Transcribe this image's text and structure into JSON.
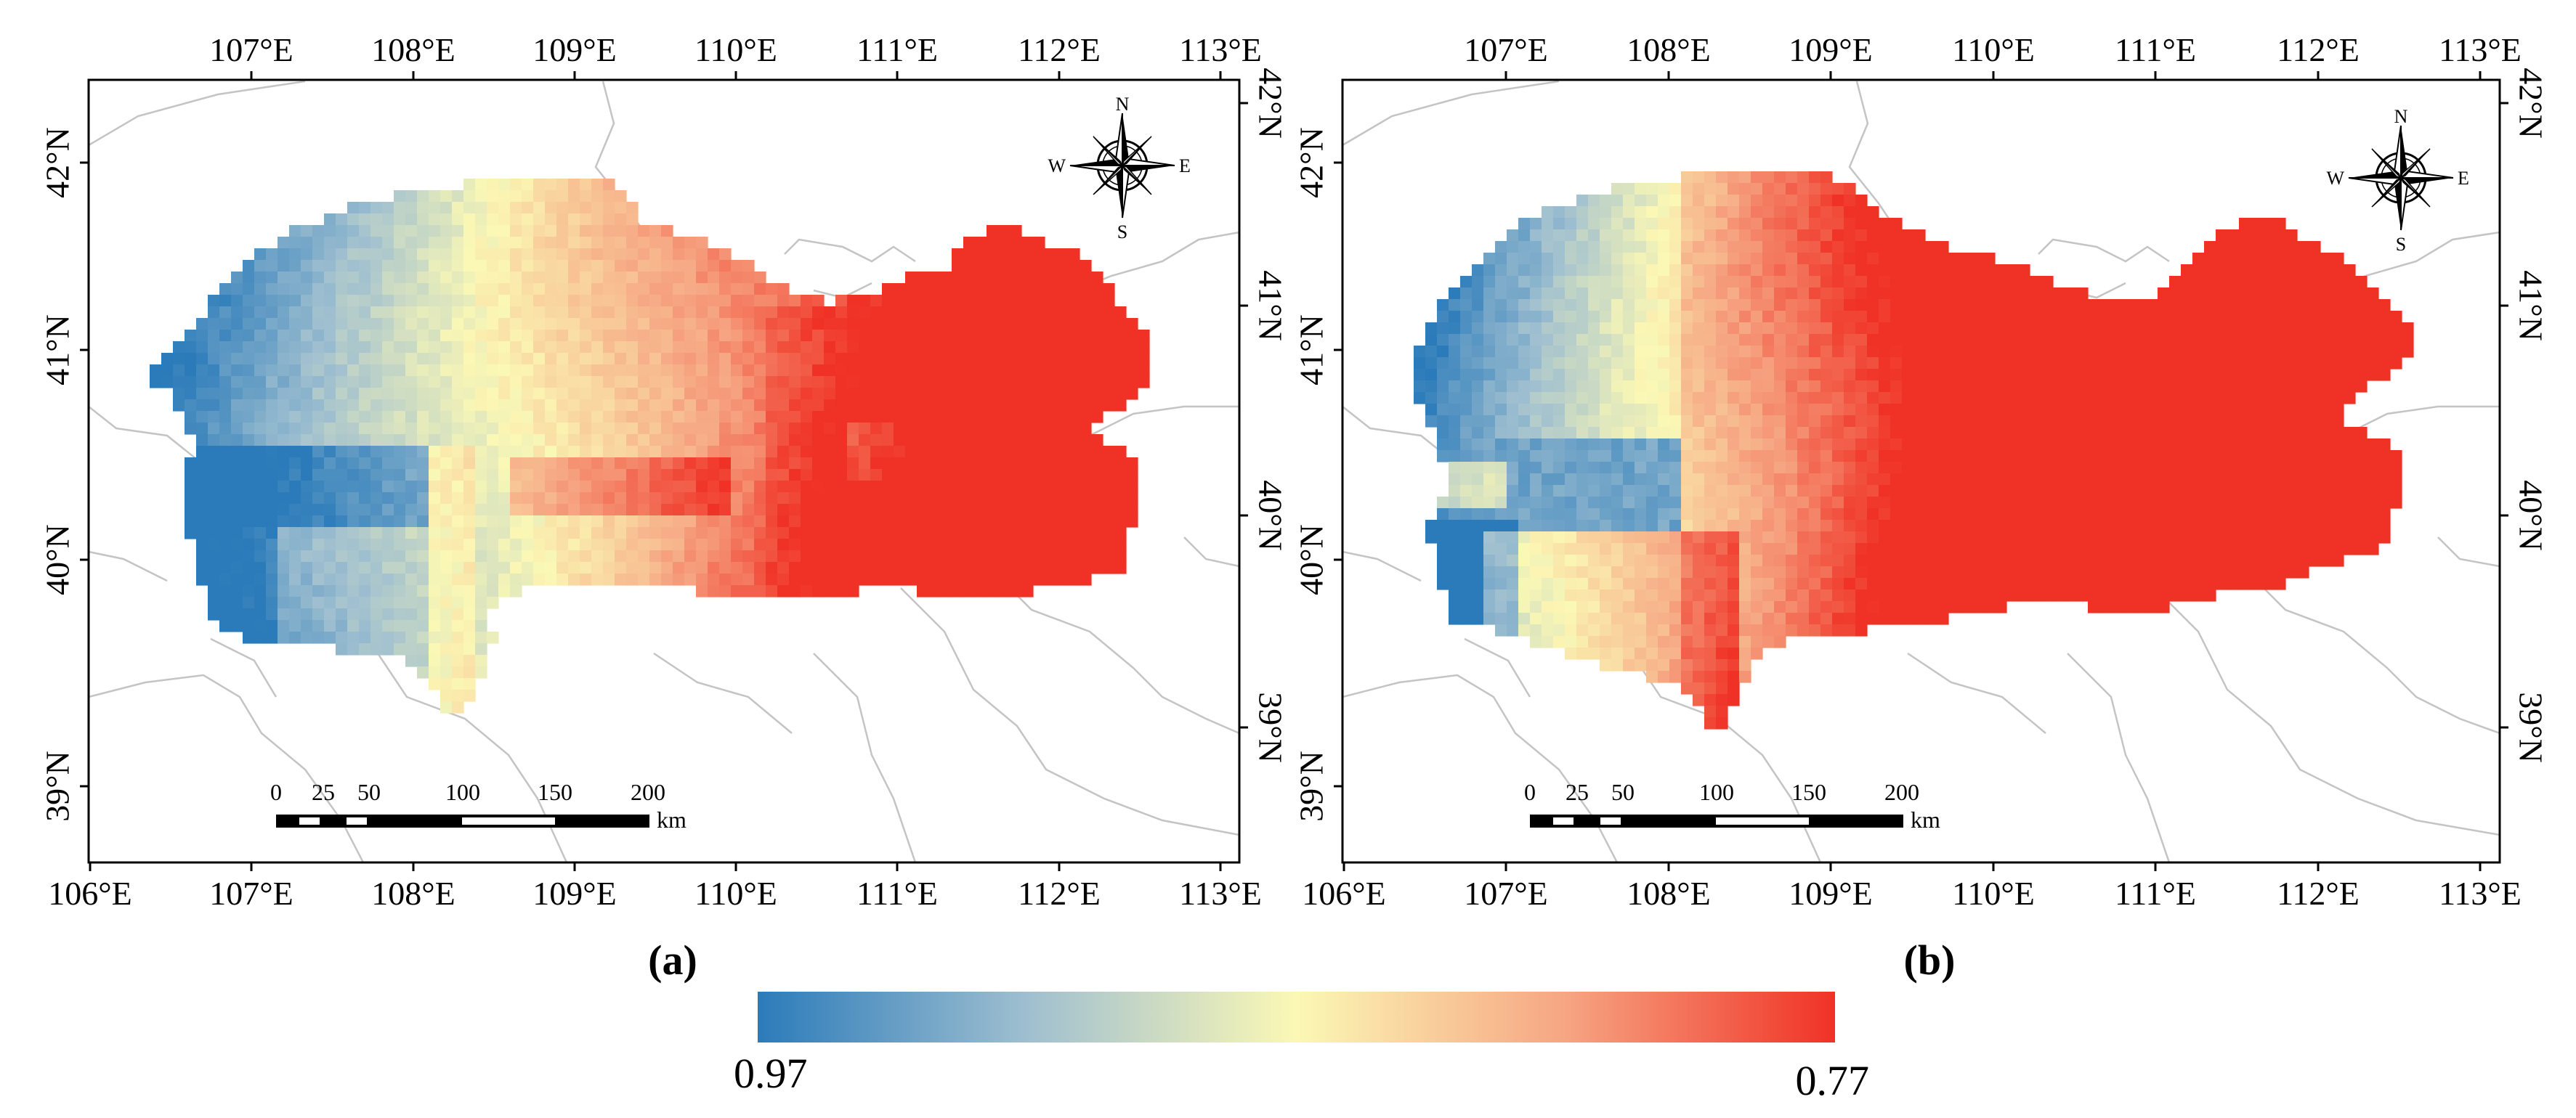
{
  "figure": {
    "panels": [
      {
        "label": "(a)",
        "lon_ticks": [
          "106°E",
          "107°E",
          "108°E",
          "109°E",
          "110°E",
          "111°E",
          "112°E",
          "113°E"
        ],
        "lon_ticks_top": [
          "107°E",
          "108°E",
          "109°E",
          "110°E",
          "111°E",
          "112°E",
          "113°E"
        ],
        "lat_ticks": [
          "39°N",
          "40°N",
          "41°N",
          "42°N"
        ],
        "lat_ticks_right": [
          "39°N",
          "40°N",
          "41°N",
          "42°N"
        ],
        "scale_bar": {
          "labels": [
            "0",
            "25",
            "50",
            "100",
            "150",
            "200"
          ],
          "unit": "km"
        },
        "compass": {
          "n": "N",
          "s": "S",
          "e": "E",
          "w": "W"
        }
      },
      {
        "label": "(b)",
        "lon_ticks": [
          "106°E",
          "107°E",
          "108°E",
          "109°E",
          "110°E",
          "111°E",
          "112°E",
          "113°E"
        ],
        "lon_ticks_top": [
          "107°E",
          "108°E",
          "109°E",
          "110°E",
          "111°E",
          "112°E",
          "113°E"
        ],
        "lat_ticks": [
          "39°N",
          "40°N",
          "41°N",
          "42°N"
        ],
        "lat_ticks_right": [
          "39°N",
          "40°N",
          "41°N",
          "42°N"
        ],
        "scale_bar": {
          "labels": [
            "0",
            "25",
            "50",
            "100",
            "150",
            "200"
          ],
          "unit": "km"
        },
        "compass": {
          "n": "N",
          "s": "S",
          "e": "E",
          "w": "W"
        }
      }
    ],
    "colorbar": {
      "min_label": "0.97",
      "max_label": "0.77",
      "colors": [
        "#2b7bba",
        "#9fbfd0",
        "#fbf8b5",
        "#f6a582",
        "#f03226"
      ]
    }
  }
}
